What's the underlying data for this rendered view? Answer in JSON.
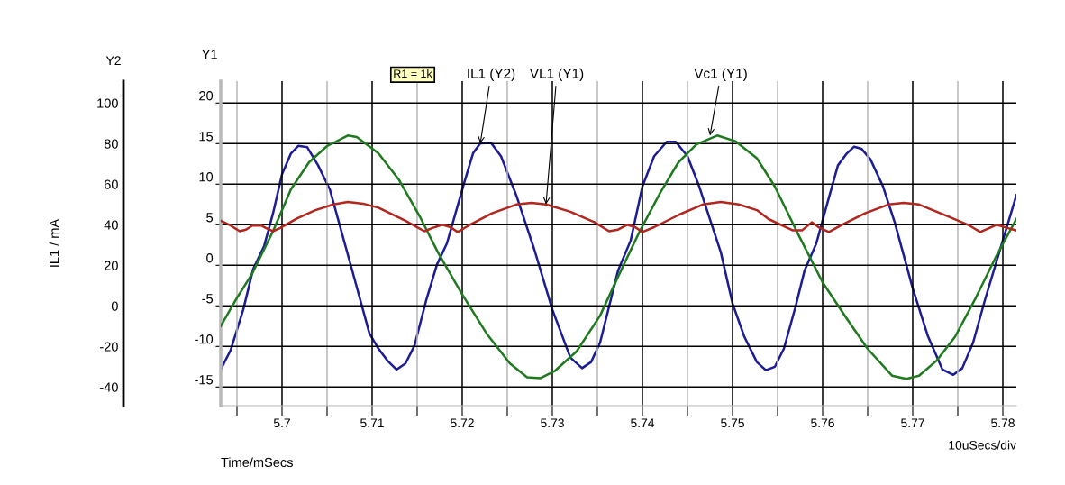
{
  "chart_data": {
    "type": "line",
    "xlabel": "Time/mSecs",
    "ylabel": "Y1",
    "y2label": "IL1 / mA",
    "xlim": [
      5.6932,
      5.7815
    ],
    "ylim": [
      -17.3,
      22.7
    ],
    "y2lim": [
      -49.2,
      110.8
    ],
    "xticks": [
      {
        "value": 5.695,
        "label": null
      },
      5.7,
      {
        "value": 5.705,
        "label": null
      },
      5.71,
      {
        "value": 5.715,
        "label": null
      },
      5.72,
      {
        "value": 5.725,
        "label": null
      },
      5.73,
      {
        "value": 5.735,
        "label": null
      },
      5.74,
      {
        "value": 5.745,
        "label": null
      },
      5.75,
      {
        "value": 5.755,
        "label": null
      },
      5.76,
      {
        "value": 5.765,
        "label": null
      },
      5.77,
      {
        "value": 5.775,
        "label": null
      },
      5.78
    ],
    "yticks": [
      -15,
      -10,
      -5,
      0,
      5,
      10,
      15,
      20
    ],
    "y2ticks": [
      -40,
      -20,
      0,
      20,
      40,
      60,
      80,
      100
    ],
    "grid": true,
    "line_style": "solid",
    "marker": "none",
    "series": [
      {
        "color": "#1c1c96",
        "axis": "y2",
        "x": [
          5.6932,
          5.6943,
          5.6957,
          5.6968,
          5.698,
          5.699,
          5.7,
          5.701,
          5.7018,
          5.7028,
          5.704,
          5.7053,
          5.7077,
          5.7097,
          5.7107,
          5.7117,
          5.7127,
          5.7137,
          5.7147,
          5.716,
          5.7172,
          5.7183,
          5.7202,
          5.7212,
          5.722,
          5.7232,
          5.7243,
          5.726,
          5.728,
          5.73,
          5.732,
          5.7333,
          5.7343,
          5.7353,
          5.7373,
          5.7387,
          5.74,
          5.7413,
          5.7427,
          5.7437,
          5.745,
          5.7463,
          5.7487,
          5.75,
          5.7513,
          5.7527,
          5.7537,
          5.7547,
          5.7557,
          5.757,
          5.758,
          5.7593,
          5.7603,
          5.7617,
          5.7627,
          5.7635,
          5.7643,
          5.7653,
          5.7667,
          5.768,
          5.77,
          5.7717,
          5.7733,
          5.7745,
          5.7755,
          5.7767,
          5.778,
          5.78,
          5.7815
        ],
        "values": [
          -31.4,
          -21.8,
          -1.8,
          18.2,
          29.3,
          45.6,
          64.9,
          75.2,
          78.9,
          78.2,
          69.3,
          57.5,
          18.9,
          -13.6,
          -21.1,
          -27.0,
          -31.4,
          -28.4,
          -19.6,
          2.7,
          20.4,
          30.8,
          60.4,
          75.2,
          80.1,
          80.4,
          73.8,
          54.5,
          27.8,
          -1.8,
          -25.5,
          -30.7,
          -27.7,
          -18.1,
          17.5,
          32.3,
          58.9,
          73.8,
          80.9,
          80.9,
          73.8,
          58.9,
          26.4,
          1.2,
          -15.1,
          -27.7,
          -31.7,
          -30.0,
          -21.1,
          -0.3,
          17.5,
          30.8,
          47.1,
          69.3,
          75.2,
          78.5,
          77.5,
          72.3,
          58.9,
          41.2,
          8.6,
          -15.1,
          -31.4,
          -34.0,
          -30.7,
          -18.1,
          2.7,
          32.3,
          54.5
        ]
      },
      {
        "color": "#1f7a1f",
        "x": [
          5.6932,
          5.695,
          5.6967,
          5.699,
          5.701,
          5.703,
          5.705,
          5.7073,
          5.7083,
          5.7107,
          5.713,
          5.7153,
          5.7173,
          5.72,
          5.7227,
          5.7253,
          5.7272,
          5.7287,
          5.7303,
          5.7327,
          5.7353,
          5.7373,
          5.7397,
          5.742,
          5.744,
          5.746,
          5.7483,
          5.7503,
          5.7527,
          5.7547,
          5.7573,
          5.76,
          5.7627,
          5.765,
          5.7677,
          5.7693,
          5.7707,
          5.7727,
          5.7747,
          5.777,
          5.7793,
          5.7815
        ],
        "values": [
          -7.5,
          -4.0,
          -1.0,
          4.2,
          9.4,
          12.7,
          14.7,
          16.0,
          15.8,
          13.8,
          10.5,
          6.0,
          1.6,
          -3.6,
          -8.4,
          -12.1,
          -13.8,
          -13.9,
          -13.0,
          -10.6,
          -6.2,
          -1.4,
          4.2,
          9.0,
          12.7,
          14.9,
          16.0,
          15.3,
          13.2,
          9.7,
          3.8,
          -2.1,
          -6.6,
          -10.3,
          -13.6,
          -14.0,
          -13.6,
          -11.7,
          -8.8,
          -4.0,
          1.2,
          5.7
        ]
      },
      {
        "color": "#b3261e",
        "x": [
          5.6932,
          5.6943,
          5.6953,
          5.696,
          5.6967,
          5.6977,
          5.6982,
          5.699,
          5.6998,
          5.7017,
          5.7037,
          5.7057,
          5.7073,
          5.709,
          5.7107,
          5.7137,
          5.7158,
          5.7167,
          5.7178,
          5.7187,
          5.7195,
          5.7207,
          5.7233,
          5.726,
          5.7277,
          5.7293,
          5.732,
          5.7347,
          5.7363,
          5.7373,
          5.7383,
          5.7392,
          5.74,
          5.7413,
          5.744,
          5.7467,
          5.7487,
          5.7507,
          5.7527,
          5.754,
          5.7567,
          5.7577,
          5.7588,
          5.7597,
          5.7607,
          5.762,
          5.7647,
          5.7673,
          5.769,
          5.7707,
          5.774,
          5.7763,
          5.7775,
          5.7793,
          5.7805,
          5.7815
        ],
        "values": [
          5.5,
          4.9,
          4.2,
          4.4,
          4.9,
          4.9,
          4.6,
          4.2,
          4.6,
          5.8,
          6.8,
          7.5,
          7.8,
          7.6,
          7.1,
          5.5,
          4.2,
          4.6,
          5.0,
          4.7,
          4.1,
          4.9,
          6.4,
          7.5,
          7.7,
          7.5,
          6.6,
          5.3,
          4.2,
          4.4,
          5.0,
          4.7,
          4.1,
          4.7,
          6.2,
          7.5,
          7.8,
          7.5,
          6.8,
          5.7,
          4.3,
          4.3,
          5.3,
          4.6,
          4.1,
          4.9,
          6.4,
          7.5,
          7.7,
          7.5,
          6.0,
          4.9,
          4.1,
          5.0,
          4.6,
          4.3
        ]
      }
    ],
    "annotations": [
      "Y2",
      "R1 = 1k",
      "10uSecs/div",
      {
        "text": "IL1 (Y2)",
        "x": 5.722,
        "y": 15.0
      },
      {
        "text": "VL1 (Y1)",
        "x": 5.7293,
        "y": 7.5
      },
      {
        "text": "Vc1 (Y1)",
        "x": 5.7475,
        "y": 16.0
      }
    ]
  }
}
